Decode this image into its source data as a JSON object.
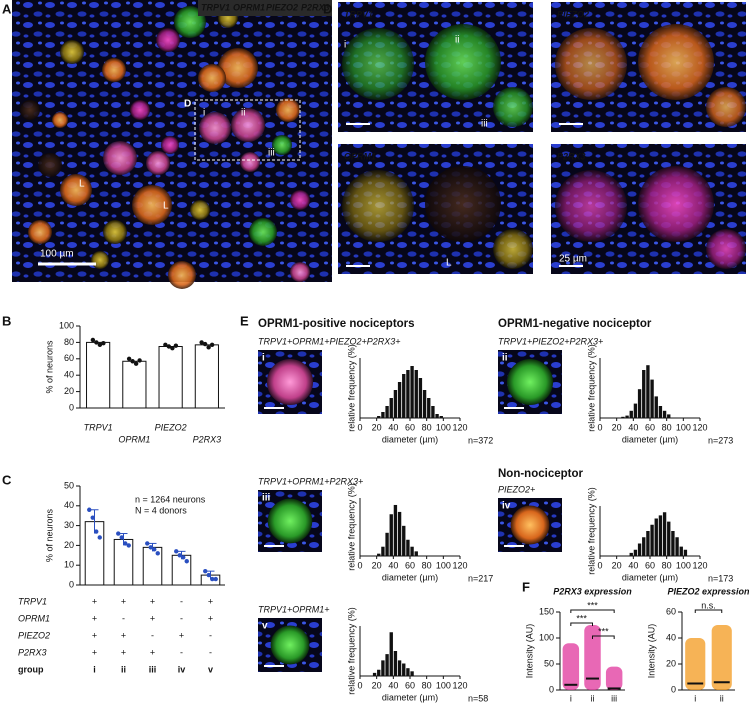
{
  "panel_labels": [
    "A",
    "B",
    "C",
    "D",
    "E",
    "F"
  ],
  "image_a": {
    "channels": [
      {
        "name": "TRPV1",
        "color": "#2fd23a"
      },
      {
        "name": "OPRM1",
        "color": "#ffd21e"
      },
      {
        "name": "PIEZO2",
        "color": "#ff9a2e"
      },
      {
        "name": "P2RX3",
        "color": "#ff4fd8"
      }
    ],
    "inset_label": "D",
    "inset_markers": [
      "i",
      "ii",
      "iii"
    ],
    "lumen_markers": [
      "L",
      "L"
    ],
    "scale_bar": "100 µm"
  },
  "image_d": {
    "tiles": [
      {
        "channel": "TRPV1",
        "color": "#2fd23a",
        "markers": [
          "i",
          "ii",
          "iii"
        ]
      },
      {
        "channel": "PIEZO2",
        "color": "#ff9a2e"
      },
      {
        "channel": "OPRM1",
        "color": "#ffd21e",
        "markers": [
          "L"
        ]
      },
      {
        "channel": "P2RX3",
        "color": "#ff4fd8",
        "scale_bar": "25 µm"
      }
    ]
  },
  "panel_e": {
    "headers": [
      "OPRM1-positive nociceptors",
      "OPRM1-negative nociceptor",
      "Non-nociceptor"
    ]
  },
  "chart_data": [
    {
      "type": "bar",
      "categories": [
        "TRPV1",
        "OPRM1",
        "PIEZO2",
        "P2RX3"
      ],
      "values": [
        80,
        57,
        75,
        77
      ],
      "points": [
        [
          83,
          80,
          77,
          79
        ],
        [
          60,
          57,
          54,
          58
        ],
        [
          77,
          75,
          73,
          76
        ],
        [
          80,
          78,
          74,
          77
        ]
      ],
      "y_label": "% of neurons",
      "ylim": [
        0,
        100
      ],
      "yticks": [
        0,
        20,
        40,
        60,
        80,
        100
      ],
      "color": "#ffffff",
      "point_color": "#111111"
    },
    {
      "type": "bar",
      "categories": [
        "i",
        "ii",
        "iii",
        "iv",
        "v"
      ],
      "values": [
        32,
        23,
        19,
        15,
        5
      ],
      "errors": [
        6,
        3,
        2,
        2,
        2
      ],
      "points": [
        [
          38,
          34,
          27,
          24
        ],
        [
          26,
          24,
          21,
          20
        ],
        [
          21,
          19,
          18,
          16
        ],
        [
          17,
          15,
          14,
          12
        ],
        [
          7,
          5,
          3,
          3
        ]
      ],
      "y_label": "% of neurons",
      "annotations": [
        "n = 1264 neurons",
        "N = 4 donors"
      ],
      "ylim": [
        0,
        50
      ],
      "yticks": [
        0,
        10,
        20,
        30,
        40,
        50
      ],
      "color": "#ffffff",
      "point_color": "#2a4fc0",
      "table": {
        "rows": [
          {
            "label": "TRPV1",
            "cells": [
              "+",
              "+",
              "+",
              "-",
              "+"
            ]
          },
          {
            "label": "OPRM1",
            "cells": [
              "+",
              "-",
              "+",
              "-",
              "+"
            ]
          },
          {
            "label": "PIEZO2",
            "cells": [
              "+",
              "+",
              "-",
              "+",
              "-"
            ]
          },
          {
            "label": "P2RX3",
            "cells": [
              "+",
              "+",
              "+",
              "-",
              "-"
            ]
          }
        ],
        "footer": "group"
      }
    },
    {
      "type": "histogram",
      "title": "TRPV1+OPRM1+PIEZO2+P2RX3+",
      "group": "i",
      "annotation": "n=372",
      "x_label": "diameter (µm)",
      "y_label": "relative frequency (%)",
      "bins": [
        20,
        25,
        30,
        35,
        40,
        45,
        50,
        55,
        60,
        65,
        70,
        75,
        80,
        85,
        90,
        95,
        100
      ],
      "values": [
        0.5,
        1.5,
        3,
        5,
        7,
        9,
        11,
        12,
        13,
        12,
        10,
        7,
        5,
        3,
        1,
        0.5
      ],
      "color": "#111111",
      "xlim": [
        0,
        120
      ],
      "xticks": [
        0,
        20,
        40,
        60,
        80,
        100,
        120
      ],
      "ylim": [
        0,
        15
      ]
    },
    {
      "type": "histogram",
      "title": "TRPV1+OPRM1+P2RX3+",
      "group": "iii",
      "annotation": "n=217",
      "x_label": "diameter (µm)",
      "y_label": "relative frequency (%)",
      "bins": [
        20,
        25,
        30,
        35,
        40,
        45,
        50,
        55,
        60,
        65,
        70
      ],
      "values": [
        1,
        4,
        10,
        18,
        22,
        19,
        13,
        7,
        4,
        2
      ],
      "color": "#111111",
      "xlim": [
        0,
        120
      ],
      "xticks": [
        0,
        20,
        40,
        60,
        80,
        100,
        120
      ],
      "ylim": [
        0,
        25
      ]
    },
    {
      "type": "histogram",
      "title": "TRPV1+OPRM1+",
      "group": "v",
      "annotation": "n=58",
      "x_label": "diameter (µm)",
      "y_label": "relative frequency (%)",
      "bins": [
        15,
        20,
        25,
        30,
        35,
        40,
        45,
        50,
        55,
        60,
        65
      ],
      "values": [
        2,
        4,
        10,
        14,
        28,
        16,
        10,
        8,
        5,
        3
      ],
      "color": "#111111",
      "xlim": [
        0,
        120
      ],
      "xticks": [
        0,
        20,
        40,
        60,
        80,
        100,
        120
      ],
      "ylim": [
        0,
        32
      ]
    },
    {
      "type": "histogram",
      "title": "TRPV1+PIEZO2+P2RX3+",
      "group": "ii",
      "annotation": "n=273",
      "x_label": "diameter (µm)",
      "y_label": "relative frequency (%)",
      "bins": [
        25,
        30,
        35,
        40,
        45,
        50,
        55,
        60,
        65,
        70,
        75,
        80,
        85
      ],
      "values": [
        0.5,
        1,
        3,
        6,
        12,
        20,
        22,
        16,
        9,
        5,
        3,
        1.5
      ],
      "color": "#111111",
      "xlim": [
        0,
        120
      ],
      "xticks": [
        0,
        20,
        40,
        60,
        80,
        100,
        120
      ],
      "ylim": [
        0,
        25
      ]
    },
    {
      "type": "histogram",
      "title": "PIEZO2+",
      "group": "iv",
      "annotation": "n=173",
      "x_label": "diameter (µm)",
      "y_label": "relative frequency (%)",
      "bins": [
        35,
        40,
        45,
        50,
        55,
        60,
        65,
        70,
        75,
        80,
        85,
        90,
        95,
        100,
        105
      ],
      "values": [
        1,
        2,
        4,
        6,
        8,
        10,
        12,
        13,
        14,
        11,
        8,
        6,
        3,
        2
      ],
      "color": "#111111",
      "xlim": [
        0,
        120
      ],
      "xticks": [
        0,
        20,
        40,
        60,
        80,
        100,
        120
      ],
      "ylim": [
        0,
        16
      ]
    },
    {
      "type": "dot",
      "title": "P2RX3 expression",
      "y_label": "Intensity (AU)",
      "categories": [
        "i",
        "ii",
        "iii"
      ],
      "values": [
        10,
        22,
        3
      ],
      "ranges": [
        [
          0,
          90
        ],
        [
          0,
          125
        ],
        [
          0,
          45
        ]
      ],
      "color": "#e0359c",
      "ylim": [
        0,
        150
      ],
      "yticks": [
        0,
        50,
        100,
        150
      ],
      "comparisons": [
        {
          "from": "i",
          "to": "iii",
          "label": "***"
        },
        {
          "from": "i",
          "to": "ii",
          "label": "***"
        },
        {
          "from": "ii",
          "to": "iii",
          "label": "***"
        }
      ]
    },
    {
      "type": "dot",
      "title": "PIEZO2 expression",
      "y_label": "Intensity (AU)",
      "categories": [
        "i",
        "ii"
      ],
      "values": [
        5,
        6
      ],
      "ranges": [
        [
          0,
          40
        ],
        [
          0,
          50
        ]
      ],
      "color": "#f39a1e",
      "ylim": [
        0,
        60
      ],
      "yticks": [
        0,
        20,
        40,
        60
      ],
      "comparisons": [
        {
          "from": "i",
          "to": "ii",
          "label": "n.s."
        }
      ]
    }
  ]
}
